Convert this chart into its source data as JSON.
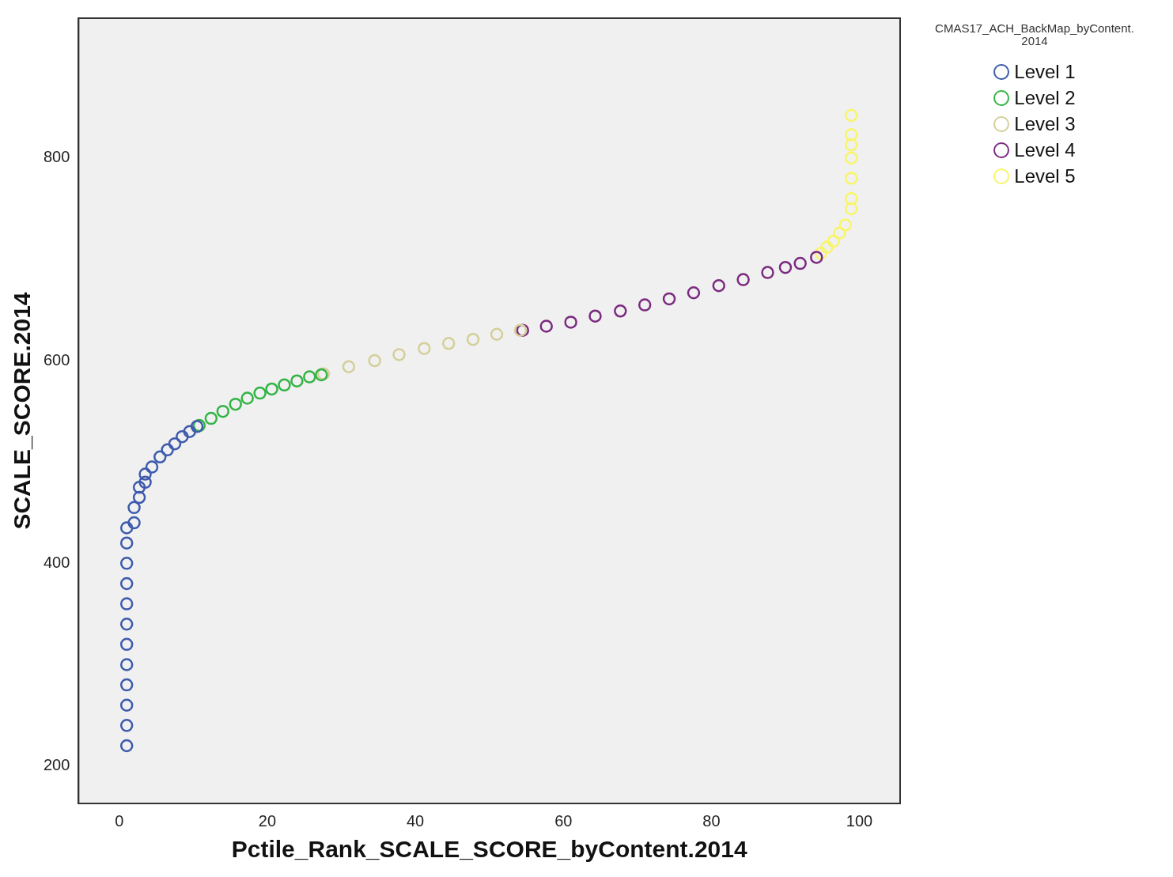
{
  "chart_data": {
    "type": "scatter",
    "xlabel": "Pctile_Rank_SCALE_SCORE_byContent.2014",
    "ylabel": "SCALE_SCORE.2014",
    "legend_title": "CMAS17_ACH_BackMap_byContent.\n2014",
    "legend": "top right",
    "grid": false,
    "marker": "circle",
    "xlim": [
      -5.5,
      105.5
    ],
    "xticks": [
      0,
      20,
      40,
      60,
      80,
      100
    ],
    "ylim": [
      163,
      938
    ],
    "yticks": [
      200,
      400,
      600,
      800
    ],
    "series": [
      {
        "name": "Level 1",
        "color": "#3d5aad",
        "x": [
          1,
          1,
          1,
          1,
          1,
          1,
          1,
          1,
          1,
          1,
          1,
          1,
          2,
          2,
          2.7,
          2.7,
          3.5,
          3.5,
          4.4,
          5.5,
          6.5,
          7.5,
          8.5,
          9.5,
          10.5
        ],
        "values": [
          220,
          240,
          260,
          280,
          300,
          320,
          340,
          360,
          380,
          400,
          420,
          435,
          440,
          455,
          465,
          475,
          480,
          488,
          495,
          505,
          512,
          518,
          525,
          530,
          535
        ]
      },
      {
        "name": "Level 2",
        "color": "#33b444",
        "x": [
          10.8,
          12.4,
          14,
          15.7,
          17.3,
          19,
          20.6,
          22.3,
          24,
          25.7,
          27.3
        ],
        "values": [
          536,
          543,
          550,
          557,
          563,
          568,
          572,
          576,
          580,
          584,
          586
        ]
      },
      {
        "name": "Level 3",
        "color": "#d4cf9a",
        "x": [
          27.6,
          31,
          34.5,
          37.8,
          41.2,
          44.5,
          47.8,
          51,
          54.2
        ],
        "values": [
          587,
          594,
          600,
          606,
          612,
          617,
          621,
          626,
          630
        ]
      },
      {
        "name": "Level 4",
        "color": "#7b2a80",
        "x": [
          54.5,
          57.7,
          61,
          64.3,
          67.7,
          71,
          74.3,
          77.6,
          81,
          84.3,
          87.6,
          90,
          92,
          94.2
        ],
        "values": [
          630,
          634,
          638,
          644,
          649,
          655,
          661,
          667,
          674,
          680,
          687,
          692,
          696,
          702
        ]
      },
      {
        "name": "Level 5",
        "color": "#f8f56a",
        "x": [
          94.8,
          95.6,
          96.5,
          97.3,
          98.1,
          98.9,
          98.9,
          98.9,
          98.9,
          98.9,
          98.9,
          98.9
        ],
        "values": [
          706,
          712,
          718,
          726,
          734,
          750,
          760,
          780,
          800,
          813,
          823,
          842
        ]
      }
    ]
  }
}
